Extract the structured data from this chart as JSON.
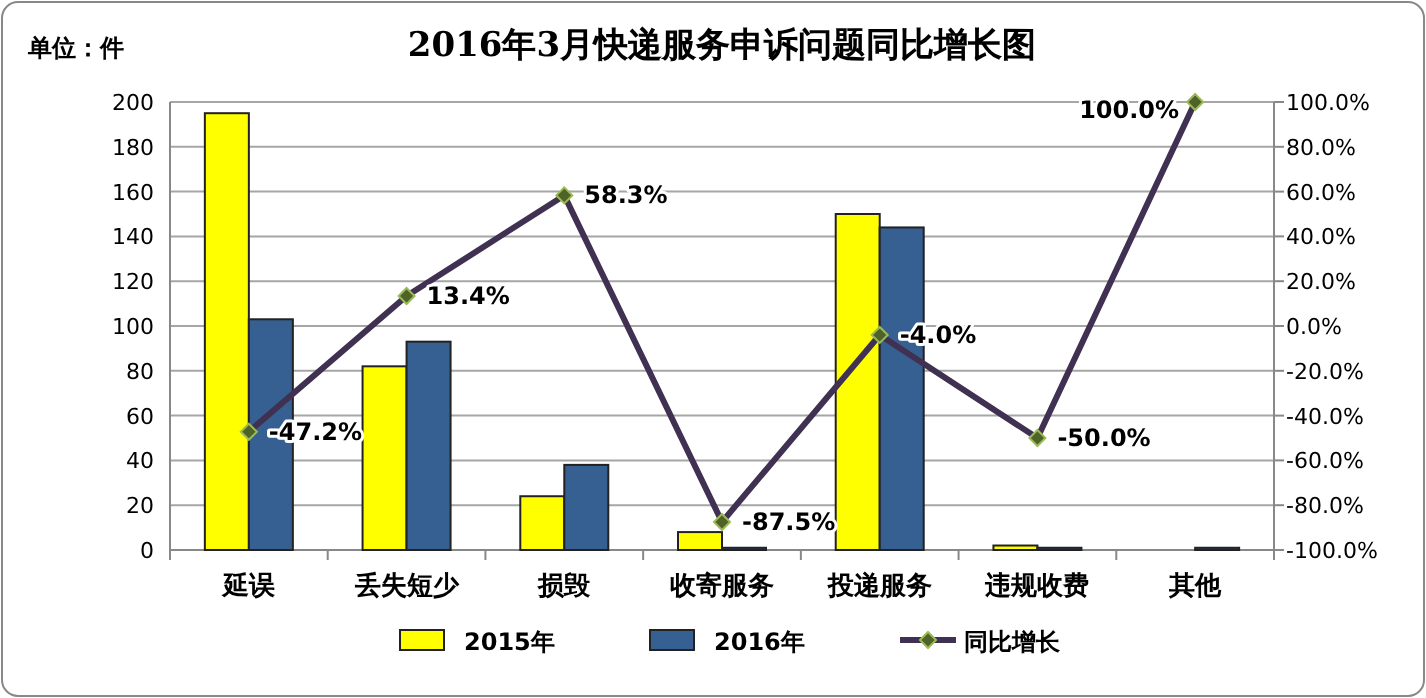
{
  "chart_data": {
    "type": "bar",
    "title": "2016年3月快递服务申诉问题同比增长图",
    "ylabel": "单位：件",
    "categories": [
      "延误",
      "丢失短少",
      "损毁",
      "收寄服务",
      "投递服务",
      "违规收费",
      "其他"
    ],
    "series": [
      {
        "name": "2015年",
        "color": "#ffff00",
        "values": [
          195,
          82,
          24,
          8,
          150,
          2,
          0
        ]
      },
      {
        "name": "2016年",
        "color": "#376092",
        "values": [
          103,
          93,
          38,
          1,
          144,
          1,
          1
        ]
      },
      {
        "name": "同比增长",
        "type": "line",
        "axis": "y2",
        "color": "#403152",
        "marker": "diamond",
        "values": [
          -47.2,
          13.4,
          58.3,
          -87.5,
          -4.0,
          -50.0,
          100.0
        ],
        "value_labels": [
          "-47.2%",
          "13.4%",
          "58.3%",
          "-87.5%",
          "-4.0%",
          "-50.0%",
          "100.0%"
        ]
      }
    ],
    "ylim": [
      0,
      200
    ],
    "yticks": [
      0,
      20,
      40,
      60,
      80,
      100,
      120,
      140,
      160,
      180,
      200
    ],
    "y2lim": [
      -100,
      100
    ],
    "y2ticks": [
      {
        "value": -100,
        "label": "-100.0%"
      },
      {
        "value": -80,
        "label": "-80.0%"
      },
      {
        "value": -60,
        "label": "-60.0%"
      },
      {
        "value": -40,
        "label": "-40.0%"
      },
      {
        "value": -20,
        "label": "-20.0%"
      },
      {
        "value": 0,
        "label": "0.0%"
      },
      {
        "value": 20,
        "label": "20.0%"
      },
      {
        "value": 40,
        "label": "40.0%"
      },
      {
        "value": 60,
        "label": "60.0%"
      },
      {
        "value": 80,
        "label": "80.0%"
      },
      {
        "value": 100,
        "label": "100.0%"
      }
    ],
    "grid": "y",
    "legend": "bottom"
  }
}
